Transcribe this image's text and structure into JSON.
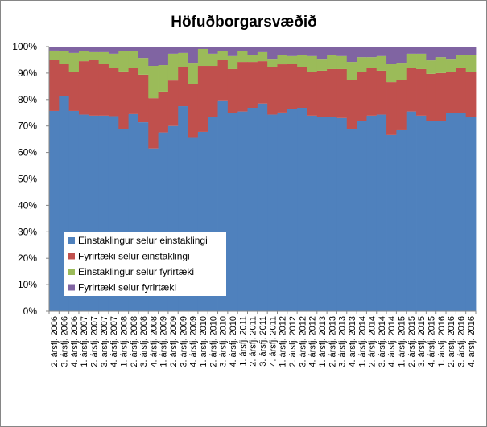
{
  "chart_data": {
    "type": "bar",
    "stacked": "percent",
    "title": "Höfuðborgarsvæðið",
    "xlabel": "",
    "ylabel": "",
    "ylim": [
      0,
      100
    ],
    "yticks": [
      "0%",
      "10%",
      "20%",
      "30%",
      "40%",
      "50%",
      "60%",
      "70%",
      "80%",
      "90%",
      "100%"
    ],
    "grid": false,
    "legend": "lower-left inside plot",
    "categories": [
      "2. ársfj. 2006",
      "3. ársfj. 2006",
      "4. ársfj. 2006",
      "1. ársfj. 2007",
      "2. ársfj. 2007",
      "3. ársfj. 2007",
      "4. ársfj. 2007",
      "1. ársfj. 2008",
      "2. ársfj. 2008",
      "3. ársfj. 2008",
      "4. ársfj. 2008",
      "1. ársfj. 2009",
      "2. ársfj. 2009",
      "3. ársfj. 2009",
      "4. ársfj. 2009",
      "1. ársfj. 2010",
      "2. ársfj. 2010",
      "3. ársfj. 2010",
      "4. ársfj. 2010",
      "1. ársfj. 2011",
      "2. ársfj. 2011",
      "3. ársfj. 2011",
      "4. ársfj. 2011",
      "1. ársfj. 2012",
      "2. ársfj. 2012",
      "3. ársfj. 2012",
      "4. ársfj. 2012",
      "1. ársfj. 2013",
      "2. ársfj. 2013",
      "3. ársfj. 2013",
      "4. ársfj. 2013",
      "1. ársfj. 2014",
      "2. ársfj. 2014",
      "3. ársfj. 2014",
      "4. ársfj. 2014",
      "1. ársfj. 2015",
      "2. ársfj. 2015",
      "3. ársfj. 2015",
      "4. ársfj. 2015",
      "1. ársfj. 2016",
      "2. ársfj. 2016",
      "3. ársfj. 2016",
      "4. ársfj. 2016"
    ],
    "series": [
      {
        "name": "Einstaklingur selur einstaklingi",
        "color": "#4F81BD",
        "values": [
          75.7,
          81.2,
          75.7,
          74.3,
          73.9,
          73.9,
          73.7,
          69.0,
          74.5,
          71.4,
          61.5,
          67.6,
          70.0,
          77.5,
          65.8,
          67.8,
          73.3,
          79.7,
          74.9,
          75.5,
          76.9,
          78.5,
          74.3,
          75.1,
          76.3,
          76.9,
          73.9,
          73.3,
          73.3,
          73.0,
          69.0,
          72.0,
          73.9,
          74.3,
          66.6,
          68.4,
          75.5,
          73.9,
          72.0,
          72.0,
          74.9,
          74.9,
          73.3
        ]
      },
      {
        "name": "Fyrirtæki selur einstaklingi",
        "color": "#C0504D",
        "values": [
          19.4,
          12.4,
          14.6,
          20.2,
          21.2,
          19.7,
          18.1,
          21.6,
          17.3,
          18.0,
          19.0,
          15.4,
          17.2,
          14.9,
          20.2,
          24.9,
          19.4,
          15.4,
          16.6,
          18.7,
          17.3,
          16.0,
          18.1,
          18.2,
          17.3,
          15.5,
          16.4,
          17.6,
          18.2,
          18.5,
          18.5,
          18.3,
          17.9,
          16.6,
          20.0,
          19.1,
          16.3,
          17.6,
          17.7,
          18.0,
          15.4,
          17.2,
          17.0
        ]
      },
      {
        "name": "Einstaklingur selur fyrirtæki",
        "color": "#9BBB59",
        "values": [
          3.4,
          4.6,
          7.3,
          3.7,
          2.8,
          4.3,
          5.5,
          7.6,
          6.4,
          6.3,
          12.2,
          10.0,
          10.1,
          5.2,
          7.9,
          6.4,
          4.6,
          3.1,
          4.9,
          4.0,
          2.5,
          3.4,
          3.0,
          3.6,
          2.8,
          4.5,
          6.1,
          4.5,
          5.2,
          4.9,
          6.7,
          5.7,
          4.2,
          5.5,
          7.0,
          6.4,
          5.5,
          5.8,
          5.1,
          6.0,
          5.1,
          4.6,
          6.4
        ]
      },
      {
        "name": "Fyrirtæki selur fyrirtæki",
        "color": "#8064A2",
        "values": [
          1.5,
          1.8,
          2.4,
          1.8,
          2.1,
          2.1,
          2.7,
          1.8,
          1.8,
          4.3,
          7.3,
          7.0,
          2.7,
          2.4,
          6.1,
          0.9,
          2.7,
          1.8,
          3.6,
          1.8,
          3.3,
          2.1,
          4.6,
          3.1,
          3.6,
          3.1,
          3.6,
          4.6,
          3.3,
          3.6,
          5.8,
          4.0,
          4.0,
          3.6,
          6.4,
          6.1,
          2.7,
          2.7,
          5.2,
          4.0,
          4.6,
          3.3,
          3.3
        ]
      }
    ]
  }
}
